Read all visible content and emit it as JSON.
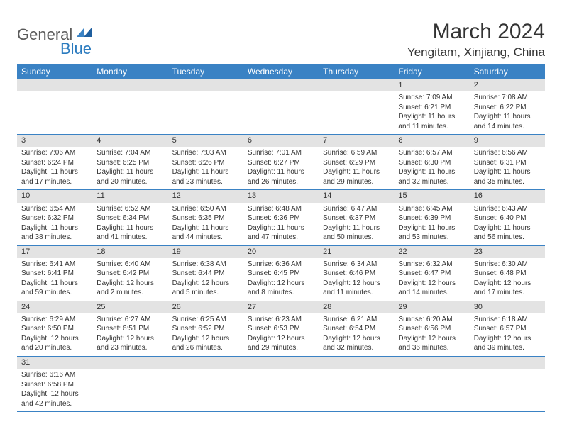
{
  "logo": {
    "text1": "General",
    "text2": "Blue"
  },
  "title": "March 2024",
  "location": "Yengitam, Xinjiang, China",
  "colors": {
    "header_bg": "#3a82c4",
    "header_fg": "#ffffff",
    "daynum_bg": "#e3e3e3",
    "rule": "#3a82c4",
    "logo_dark": "#5a5a5a",
    "logo_blue": "#2b7bbf"
  },
  "weekdays": [
    "Sunday",
    "Monday",
    "Tuesday",
    "Wednesday",
    "Thursday",
    "Friday",
    "Saturday"
  ],
  "weeks": [
    [
      null,
      null,
      null,
      null,
      null,
      {
        "n": "1",
        "sr": "7:09 AM",
        "ss": "6:21 PM",
        "dl": "11 hours and 11 minutes."
      },
      {
        "n": "2",
        "sr": "7:08 AM",
        "ss": "6:22 PM",
        "dl": "11 hours and 14 minutes."
      }
    ],
    [
      {
        "n": "3",
        "sr": "7:06 AM",
        "ss": "6:24 PM",
        "dl": "11 hours and 17 minutes."
      },
      {
        "n": "4",
        "sr": "7:04 AM",
        "ss": "6:25 PM",
        "dl": "11 hours and 20 minutes."
      },
      {
        "n": "5",
        "sr": "7:03 AM",
        "ss": "6:26 PM",
        "dl": "11 hours and 23 minutes."
      },
      {
        "n": "6",
        "sr": "7:01 AM",
        "ss": "6:27 PM",
        "dl": "11 hours and 26 minutes."
      },
      {
        "n": "7",
        "sr": "6:59 AM",
        "ss": "6:29 PM",
        "dl": "11 hours and 29 minutes."
      },
      {
        "n": "8",
        "sr": "6:57 AM",
        "ss": "6:30 PM",
        "dl": "11 hours and 32 minutes."
      },
      {
        "n": "9",
        "sr": "6:56 AM",
        "ss": "6:31 PM",
        "dl": "11 hours and 35 minutes."
      }
    ],
    [
      {
        "n": "10",
        "sr": "6:54 AM",
        "ss": "6:32 PM",
        "dl": "11 hours and 38 minutes."
      },
      {
        "n": "11",
        "sr": "6:52 AM",
        "ss": "6:34 PM",
        "dl": "11 hours and 41 minutes."
      },
      {
        "n": "12",
        "sr": "6:50 AM",
        "ss": "6:35 PM",
        "dl": "11 hours and 44 minutes."
      },
      {
        "n": "13",
        "sr": "6:48 AM",
        "ss": "6:36 PM",
        "dl": "11 hours and 47 minutes."
      },
      {
        "n": "14",
        "sr": "6:47 AM",
        "ss": "6:37 PM",
        "dl": "11 hours and 50 minutes."
      },
      {
        "n": "15",
        "sr": "6:45 AM",
        "ss": "6:39 PM",
        "dl": "11 hours and 53 minutes."
      },
      {
        "n": "16",
        "sr": "6:43 AM",
        "ss": "6:40 PM",
        "dl": "11 hours and 56 minutes."
      }
    ],
    [
      {
        "n": "17",
        "sr": "6:41 AM",
        "ss": "6:41 PM",
        "dl": "11 hours and 59 minutes."
      },
      {
        "n": "18",
        "sr": "6:40 AM",
        "ss": "6:42 PM",
        "dl": "12 hours and 2 minutes."
      },
      {
        "n": "19",
        "sr": "6:38 AM",
        "ss": "6:44 PM",
        "dl": "12 hours and 5 minutes."
      },
      {
        "n": "20",
        "sr": "6:36 AM",
        "ss": "6:45 PM",
        "dl": "12 hours and 8 minutes."
      },
      {
        "n": "21",
        "sr": "6:34 AM",
        "ss": "6:46 PM",
        "dl": "12 hours and 11 minutes."
      },
      {
        "n": "22",
        "sr": "6:32 AM",
        "ss": "6:47 PM",
        "dl": "12 hours and 14 minutes."
      },
      {
        "n": "23",
        "sr": "6:30 AM",
        "ss": "6:48 PM",
        "dl": "12 hours and 17 minutes."
      }
    ],
    [
      {
        "n": "24",
        "sr": "6:29 AM",
        "ss": "6:50 PM",
        "dl": "12 hours and 20 minutes."
      },
      {
        "n": "25",
        "sr": "6:27 AM",
        "ss": "6:51 PM",
        "dl": "12 hours and 23 minutes."
      },
      {
        "n": "26",
        "sr": "6:25 AM",
        "ss": "6:52 PM",
        "dl": "12 hours and 26 minutes."
      },
      {
        "n": "27",
        "sr": "6:23 AM",
        "ss": "6:53 PM",
        "dl": "12 hours and 29 minutes."
      },
      {
        "n": "28",
        "sr": "6:21 AM",
        "ss": "6:54 PM",
        "dl": "12 hours and 32 minutes."
      },
      {
        "n": "29",
        "sr": "6:20 AM",
        "ss": "6:56 PM",
        "dl": "12 hours and 36 minutes."
      },
      {
        "n": "30",
        "sr": "6:18 AM",
        "ss": "6:57 PM",
        "dl": "12 hours and 39 minutes."
      }
    ],
    [
      {
        "n": "31",
        "sr": "6:16 AM",
        "ss": "6:58 PM",
        "dl": "12 hours and 42 minutes."
      },
      null,
      null,
      null,
      null,
      null,
      null
    ]
  ],
  "labels": {
    "sunrise": "Sunrise:",
    "sunset": "Sunset:",
    "daylight": "Daylight:"
  }
}
